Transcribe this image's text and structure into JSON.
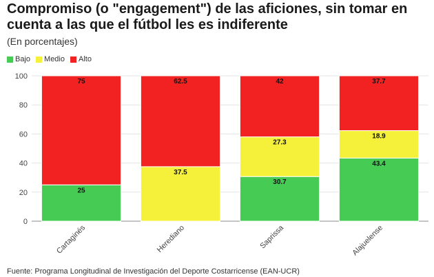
{
  "chart_data": {
    "type": "bar",
    "stacked": true,
    "title": "Compromiso (o \"engagement\") de las aficiones, sin tomar en cuenta a las que el fútbol les es indiferente",
    "subtitle": "(En porcentajes)",
    "categories": [
      "Cartaginés",
      "Herediano",
      "Saprissa",
      "Alajuelense"
    ],
    "series": [
      {
        "name": "Bajo",
        "color": "#46cc55",
        "values": [
          25,
          0,
          30.7,
          43.4
        ],
        "labels": [
          "25",
          "",
          "30.7",
          "43.4"
        ]
      },
      {
        "name": "Medio",
        "color": "#f5f03a",
        "values": [
          0,
          37.5,
          27.3,
          18.9
        ],
        "labels": [
          "",
          "37.5",
          "27.3",
          "18.9"
        ]
      },
      {
        "name": "Alto",
        "color": "#f22222",
        "values": [
          75,
          62.5,
          42,
          37.7
        ],
        "labels": [
          "75",
          "62.5",
          "42",
          "37.7"
        ]
      }
    ],
    "yticks": [
      "0",
      "20",
      "40",
      "60",
      "80",
      "100"
    ],
    "ylim": [
      0,
      100
    ],
    "legend_position": "top-left",
    "grid": true
  },
  "source": "Fuente: Programa Longitudinal de Investigación del Deporte Costarricense (EAN-UCR)"
}
